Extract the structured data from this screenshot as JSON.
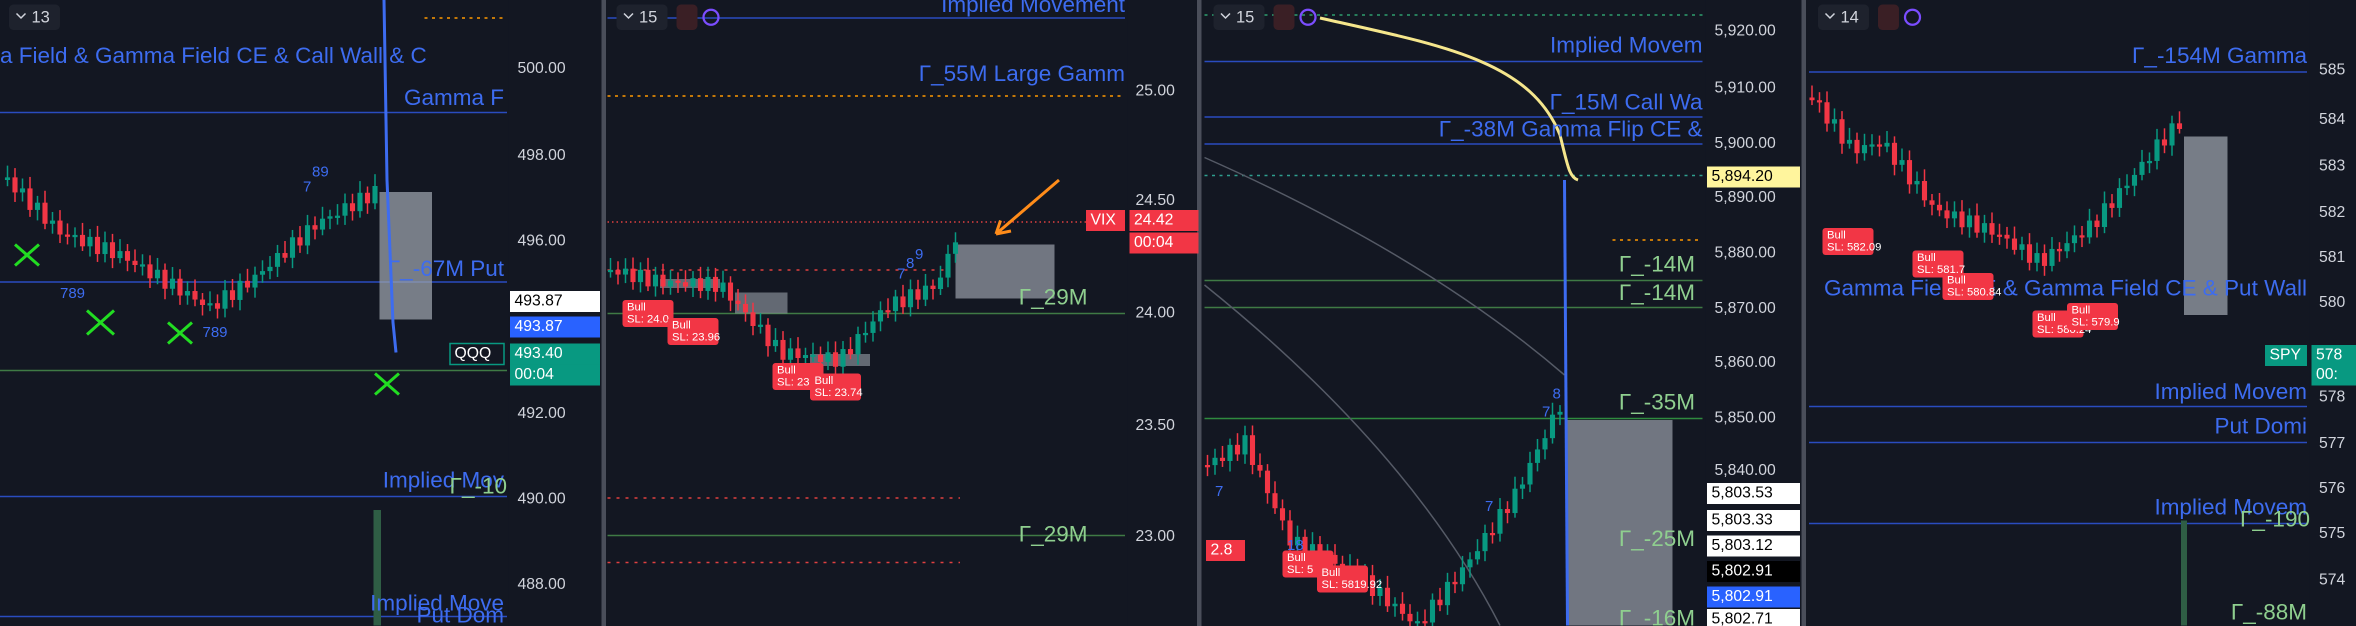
{
  "panels": [
    {
      "counter": "13",
      "labels": [
        "a Field & Gamma Field CE & Call Wall & C",
        "Gamma F",
        "Γ_-67M  Put",
        "Implied Mov",
        "Γ_-10",
        "Implied Move",
        "Put Dom"
      ],
      "axis": [
        "500.00",
        "498.00",
        "496.00",
        "492.00",
        "490.00",
        "488.00"
      ],
      "tags": [
        "493.87",
        "493.87",
        "QQQ",
        "493.40",
        "00:04"
      ],
      "studies": [
        "89",
        "7",
        "789",
        "789"
      ],
      "bulls": []
    },
    {
      "counter": "15",
      "labels": [
        "Implied Movement",
        "Γ_55M  Large Gamm",
        "Γ_29M",
        "Γ_29M"
      ],
      "axis": [
        "25.00",
        "24.50",
        "24.00",
        "23.50",
        "23.00"
      ],
      "tags": [
        "VIX",
        "24.42",
        "00:04"
      ],
      "studies": [
        "7",
        "8",
        "9"
      ],
      "bulls": [
        {
          "title": "Bull",
          "sl": "SL: 24.0"
        },
        {
          "title": "Bull",
          "sl": "SL: 23.96"
        },
        {
          "title": "Bull",
          "sl": "SL: 23"
        },
        {
          "title": "Bull",
          "sl": "SL: 23.74"
        }
      ]
    },
    {
      "counter": "15",
      "labels": [
        "Implied Movem",
        "Γ_15M  Call Wa",
        "Γ_-38M  Gamma Flip CE &",
        "Γ_-14M",
        "Γ_-14M",
        "Γ_-35M",
        "Γ_-25M",
        "Γ_-16M"
      ],
      "axis": [
        "5,920.00",
        "5,910.00",
        "5,900.00",
        "5,890.00",
        "5,880.00",
        "5,870.00",
        "5,860.00",
        "5,850.00",
        "5,840.00"
      ],
      "tags": [
        "5,894.20",
        "5,803.53",
        "5,803.33",
        "5,803.12",
        "5,802.91",
        "5,802.91",
        "5,802.71",
        "2.8"
      ],
      "studies": [
        "7",
        "18",
        "7",
        "8",
        "7"
      ],
      "bulls": [
        {
          "title": "Bull",
          "sl": "SL: 5"
        },
        {
          "title": "Bull",
          "sl": "SL: 5819.92"
        }
      ]
    },
    {
      "counter": "14",
      "labels": [
        "Γ_-154M  Gamma",
        "Gamma Field CE & Gamma Field CE & Put Wall",
        "Implied Movem",
        "Put Domi",
        "Implied Movem",
        "Γ_-190",
        "Γ_-88M"
      ],
      "axis": [
        "585",
        "584",
        "583",
        "582",
        "581",
        "580",
        "578",
        "577",
        "576",
        "575",
        "574"
      ],
      "tags": [
        "SPY",
        "578",
        "00:"
      ],
      "studies": [],
      "bulls": [
        {
          "title": "Bull",
          "sl": "SL: 582.09"
        },
        {
          "title": "Bull",
          "sl": "SL: 581.7"
        },
        {
          "title": "Bull",
          "sl": "SL: 580.84"
        },
        {
          "title": "Bull",
          "sl": "SL: 580.24"
        },
        {
          "title": "Bull",
          "sl": "SL: 579.9"
        }
      ]
    }
  ]
}
